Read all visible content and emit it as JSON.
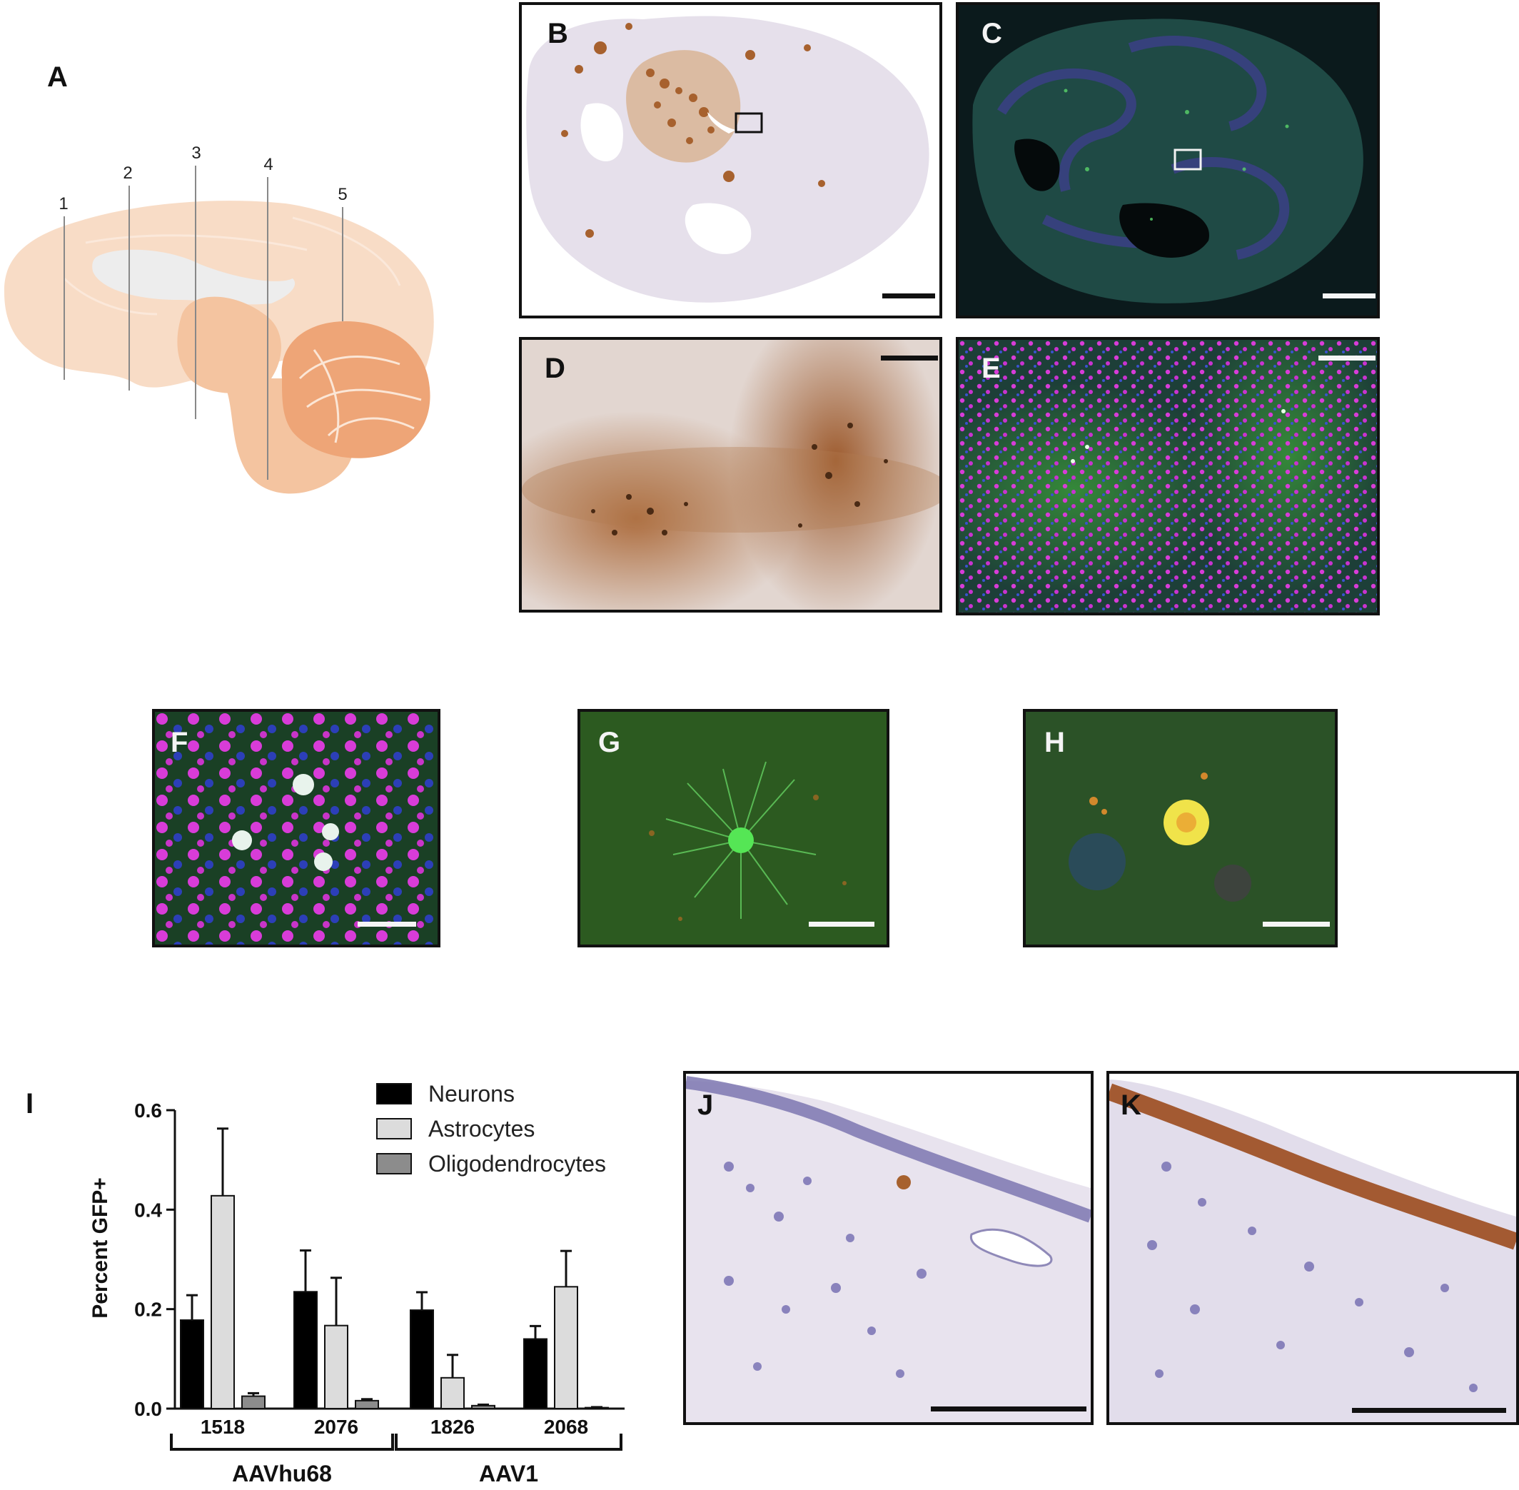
{
  "panels": {
    "a": {
      "letter": "A",
      "section_numbers": [
        "1",
        "2",
        "3",
        "4",
        "5"
      ]
    },
    "b": {
      "letter": "B"
    },
    "c": {
      "letter": "C"
    },
    "d": {
      "letter": "D"
    },
    "e": {
      "letter": "E"
    },
    "f": {
      "letter": "F"
    },
    "g": {
      "letter": "G"
    },
    "h": {
      "letter": "H"
    },
    "i": {
      "letter": "I"
    },
    "j": {
      "letter": "J"
    },
    "k": {
      "letter": "K"
    }
  },
  "colors": {
    "brain_light": "#f8dcc6",
    "brain_mid": "#f4c4a0",
    "brain_dark": "#eea577",
    "ventricle": "#ededed",
    "ihc_background": "#e6e0eb",
    "ihc_stain": "#a7612e",
    "fluor_background": "#0b1a1c",
    "fluor_green": "#3fa83a",
    "fluor_magenta": "#d83cd8",
    "fluor_blue": "#2c3fb8"
  },
  "chart_data": {
    "type": "bar",
    "categories": [
      "1518",
      "2076",
      "1826",
      "2068"
    ],
    "groups": [
      {
        "label": "AAVhu68",
        "categories": [
          "1518",
          "2076"
        ]
      },
      {
        "label": "AAV1",
        "categories": [
          "1826",
          "2068"
        ]
      }
    ],
    "series": [
      {
        "name": "Neurons",
        "color": "#000000",
        "values": [
          0.178,
          0.235,
          0.198,
          0.14
        ],
        "errors": [
          0.05,
          0.083,
          0.036,
          0.026
        ]
      },
      {
        "name": "Astrocytes",
        "color": "#dcdcdc",
        "values": [
          0.428,
          0.167,
          0.062,
          0.245
        ],
        "errors": [
          0.135,
          0.096,
          0.046,
          0.072
        ]
      },
      {
        "name": "Oligodendrocytes",
        "color": "#8c8c8c",
        "values": [
          0.025,
          0.016,
          0.006,
          0.002
        ],
        "errors": [
          0.006,
          0.003,
          0.002,
          0.001
        ]
      }
    ],
    "ylabel": "Percent GFP+",
    "xlabel": "",
    "ylim": [
      0,
      0.6
    ],
    "yticks": [
      "0.0",
      "0.2",
      "0.4",
      "0.6"
    ],
    "legend_position": "top-right",
    "grid": false
  }
}
